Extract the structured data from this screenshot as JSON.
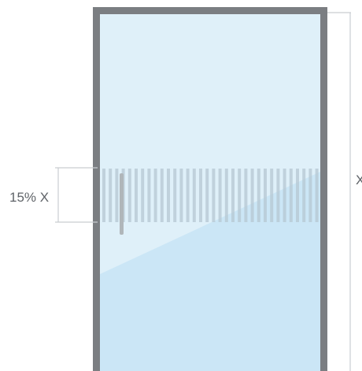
{
  "diagram": {
    "height_label": "X",
    "band_label": "15% X",
    "band_fraction_of_height": 0.15,
    "colors": {
      "frame": "#7b7e82",
      "glass_light": "#dff0f9",
      "glass_reflection": "#cbe6f6",
      "stripes": "#b5c7d1",
      "handle": "#b0b6ba",
      "dimension_lines": "#c9cdd1",
      "label_text": "#5f6368"
    }
  }
}
